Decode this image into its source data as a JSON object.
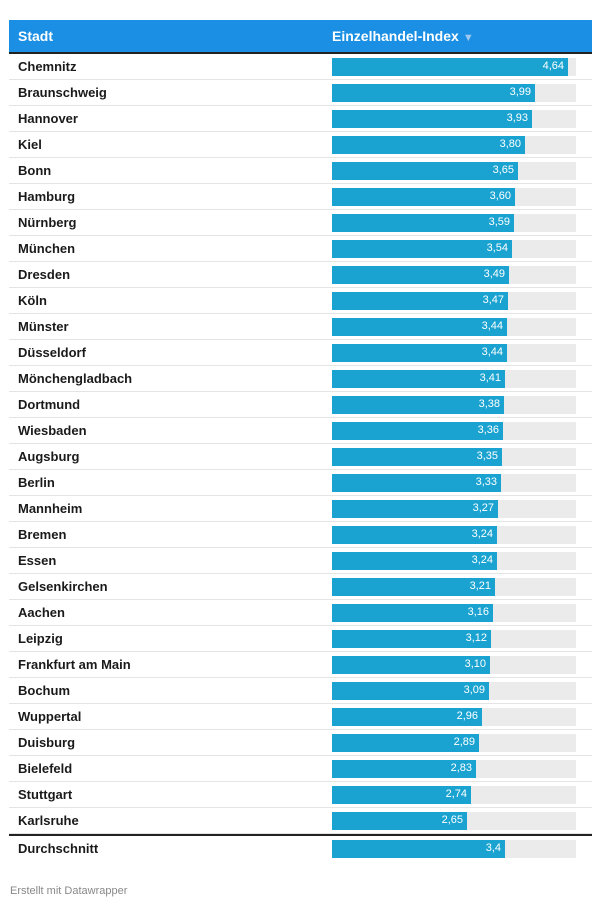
{
  "chart_data": {
    "type": "table",
    "columns": [
      "Stadt",
      "Einzelhandel-Index"
    ],
    "sort_indicator": "▼",
    "scale_max": 4.8,
    "rows": [
      {
        "city": "Chemnitz",
        "value": 4.64,
        "label": "4,64"
      },
      {
        "city": "Braunschweig",
        "value": 3.99,
        "label": "3,99"
      },
      {
        "city": "Hannover",
        "value": 3.93,
        "label": "3,93"
      },
      {
        "city": "Kiel",
        "value": 3.8,
        "label": "3,80"
      },
      {
        "city": "Bonn",
        "value": 3.65,
        "label": "3,65"
      },
      {
        "city": "Hamburg",
        "value": 3.6,
        "label": "3,60"
      },
      {
        "city": "Nürnberg",
        "value": 3.59,
        "label": "3,59"
      },
      {
        "city": "München",
        "value": 3.54,
        "label": "3,54"
      },
      {
        "city": "Dresden",
        "value": 3.49,
        "label": "3,49"
      },
      {
        "city": "Köln",
        "value": 3.47,
        "label": "3,47"
      },
      {
        "city": "Münster",
        "value": 3.44,
        "label": "3,44"
      },
      {
        "city": "Düsseldorf",
        "value": 3.44,
        "label": "3,44"
      },
      {
        "city": "Mönchengladbach",
        "value": 3.41,
        "label": "3,41"
      },
      {
        "city": "Dortmund",
        "value": 3.38,
        "label": "3,38"
      },
      {
        "city": "Wiesbaden",
        "value": 3.36,
        "label": "3,36"
      },
      {
        "city": "Augsburg",
        "value": 3.35,
        "label": "3,35"
      },
      {
        "city": "Berlin",
        "value": 3.33,
        "label": "3,33"
      },
      {
        "city": "Mannheim",
        "value": 3.27,
        "label": "3,27"
      },
      {
        "city": "Bremen",
        "value": 3.24,
        "label": "3,24"
      },
      {
        "city": "Essen",
        "value": 3.24,
        "label": "3,24"
      },
      {
        "city": "Gelsenkirchen",
        "value": 3.21,
        "label": "3,21"
      },
      {
        "city": "Aachen",
        "value": 3.16,
        "label": "3,16"
      },
      {
        "city": "Leipzig",
        "value": 3.12,
        "label": "3,12"
      },
      {
        "city": "Frankfurt am Main",
        "value": 3.1,
        "label": "3,10"
      },
      {
        "city": "Bochum",
        "value": 3.09,
        "label": "3,09"
      },
      {
        "city": "Wuppertal",
        "value": 2.96,
        "label": "2,96"
      },
      {
        "city": "Duisburg",
        "value": 2.89,
        "label": "2,89"
      },
      {
        "city": "Bielefeld",
        "value": 2.83,
        "label": "2,83"
      },
      {
        "city": "Stuttgart",
        "value": 2.74,
        "label": "2,74"
      },
      {
        "city": "Karlsruhe",
        "value": 2.65,
        "label": "2,65"
      }
    ],
    "average": {
      "city": "Durchschnitt",
      "value": 3.4,
      "label": "3,4"
    }
  },
  "footer": "Erstellt mit Datawrapper",
  "colors": {
    "header": "#1a8fe3",
    "bar": "#1aa3d1",
    "track": "#ebebeb"
  }
}
